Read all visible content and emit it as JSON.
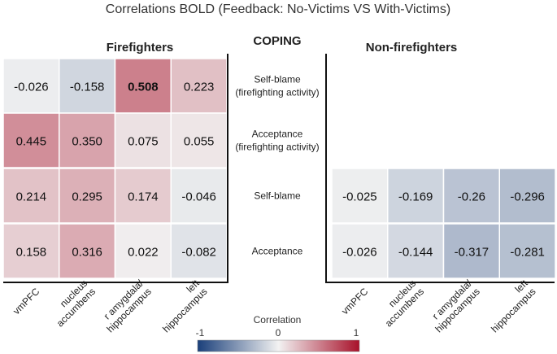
{
  "chart_data": {
    "type": "heatmap",
    "title": "Correlations BOLD (Feedback: No-Victims VS With-Victims)",
    "center_label": "COPING",
    "row_labels": [
      [
        "Self-blame",
        "(firefighting activity)"
      ],
      [
        "Acceptance",
        "(firefighting activity)"
      ],
      [
        "Self-blame"
      ],
      [
        "Acceptance"
      ]
    ],
    "column_labels": [
      [
        "vmPFC"
      ],
      [
        "nucleus",
        "accumbens"
      ],
      [
        "r amygdala/",
        "hippocampus"
      ],
      [
        "left",
        "hippocampus"
      ]
    ],
    "panels": [
      {
        "name": "Firefighters",
        "rows": [
          0,
          1,
          2,
          3
        ],
        "values": [
          [
            "-0.026",
            "-0.158",
            "0.508",
            "0.223"
          ],
          [
            "0.445",
            "0.350",
            "0.075",
            "0.055"
          ],
          [
            "0.214",
            "0.295",
            "0.174",
            "-0.046"
          ],
          [
            "0.158",
            "0.316",
            "0.022",
            "-0.082"
          ]
        ],
        "bold_cells": [
          [
            0,
            2
          ]
        ]
      },
      {
        "name": "Non-firefighters",
        "rows": [
          2,
          3
        ],
        "values": [
          [
            "-0.025",
            "-0.169",
            "-0.26",
            "-0.296"
          ],
          [
            "-0.026",
            "-0.144",
            "-0.317",
            "-0.281"
          ]
        ],
        "bold_cells": []
      }
    ],
    "colorbar": {
      "label": "Correlation",
      "min": -1,
      "max": 1,
      "ticks": [
        "-1",
        "0",
        "1"
      ],
      "min_color": "#1a3f7a",
      "mid_color": "#f2f2f2",
      "max_color": "#a8112a"
    }
  }
}
